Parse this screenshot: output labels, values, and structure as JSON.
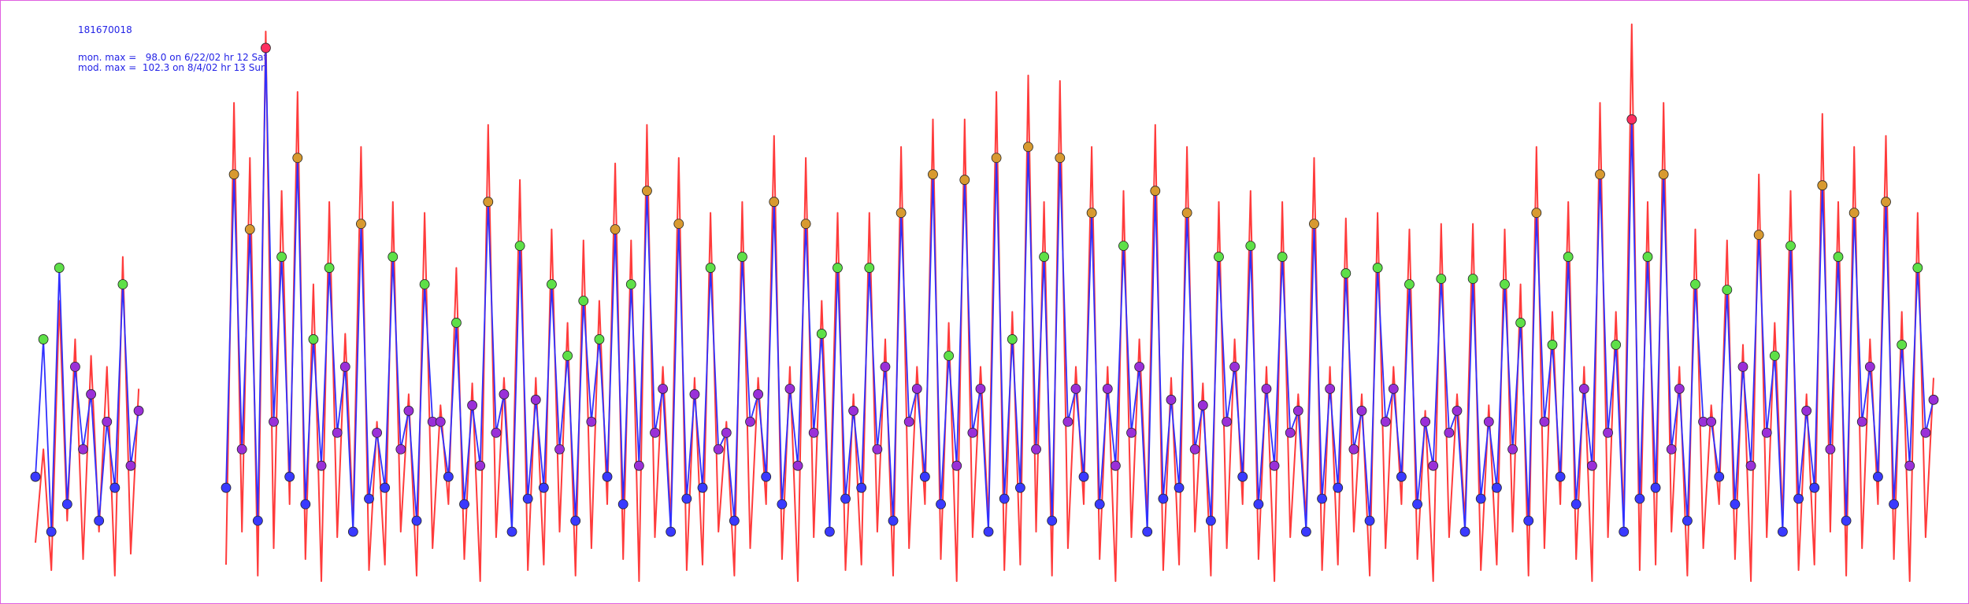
{
  "chart_data": {
    "type": "line",
    "title": "181670018",
    "annotations": [
      "mon. max =   98.0 on 6/22/02 hr 12 Sat",
      "mod. max =  102.3 on 8/4/02 hr 13 Sun"
    ],
    "ylim": [
      0,
      105
    ],
    "marker_colormap": [
      "#3a3aff",
      "#9a30d8",
      "#5ee048",
      "#d89a30",
      "#ff3060"
    ],
    "series": [
      {
        "name": "mod",
        "color": "#ff3b3b",
        "markers": false,
        "values": [
          8,
          25,
          3,
          52,
          12,
          45,
          5,
          42,
          10,
          40,
          2,
          60,
          6,
          36,
          null,
          null,
          null,
          null,
          null,
          null,
          null,
          null,
          null,
          null,
          4,
          88,
          10,
          78,
          2,
          101,
          7,
          72,
          15,
          90,
          5,
          55,
          1,
          70,
          9,
          46,
          12,
          80,
          3,
          30,
          4,
          70,
          10,
          35,
          2,
          68,
          7,
          33,
          15,
          58,
          5,
          37,
          1,
          84,
          9,
          38,
          12,
          74,
          3,
          38,
          4,
          65,
          10,
          48,
          2,
          63,
          7,
          52,
          15,
          77,
          5,
          63,
          1,
          84,
          9,
          40,
          12,
          78,
          3,
          38,
          4,
          68,
          10,
          30,
          2,
          70,
          7,
          38,
          15,
          82,
          5,
          40,
          1,
          78,
          9,
          52,
          12,
          68,
          3,
          35,
          4,
          68,
          10,
          45,
          2,
          80,
          7,
          40,
          15,
          85,
          5,
          48,
          1,
          85,
          9,
          40,
          12,
          90,
          3,
          50,
          4,
          93,
          10,
          70,
          2,
          92,
          7,
          40,
          15,
          80,
          5,
          40,
          1,
          72,
          9,
          45,
          12,
          84,
          3,
          38,
          4,
          80,
          10,
          37,
          2,
          70,
          7,
          45,
          15,
          72,
          5,
          40,
          1,
          70,
          9,
          35,
          12,
          78,
          3,
          40,
          4,
          67,
          10,
          35,
          2,
          68,
          7,
          40,
          15,
          65,
          5,
          32,
          1,
          66,
          9,
          35,
          12,
          66,
          3,
          33,
          4,
          65,
          10,
          55,
          2,
          80,
          7,
          50,
          15,
          70,
          5,
          40,
          1,
          88,
          9,
          50,
          12,
          102.3,
          3,
          70,
          4,
          88,
          10,
          40,
          2,
          65,
          7,
          33,
          15,
          63,
          5,
          44,
          1,
          75,
          9,
          48,
          12,
          72,
          3,
          35,
          4,
          86,
          10,
          70,
          2,
          80,
          7,
          45,
          15,
          82,
          5,
          50,
          1,
          68,
          9,
          38
        ]
      },
      {
        "name": "mon",
        "color": "#3030ff",
        "markers": true,
        "values": [
          20,
          45,
          10,
          58,
          15,
          40,
          25,
          35,
          12,
          30,
          18,
          55,
          22,
          32,
          null,
          null,
          null,
          null,
          null,
          null,
          null,
          null,
          null,
          null,
          18,
          75,
          25,
          65,
          12,
          98.0,
          30,
          60,
          20,
          78,
          15,
          45,
          22,
          58,
          28,
          40,
          10,
          66,
          16,
          28,
          18,
          60,
          25,
          32,
          12,
          55,
          30,
          30,
          20,
          48,
          15,
          33,
          22,
          70,
          28,
          35,
          10,
          62,
          16,
          34,
          18,
          55,
          25,
          42,
          12,
          52,
          30,
          45,
          20,
          65,
          15,
          55,
          22,
          72,
          28,
          36,
          10,
          66,
          16,
          35,
          18,
          58,
          25,
          28,
          12,
          60,
          30,
          35,
          20,
          70,
          15,
          36,
          22,
          66,
          28,
          46,
          10,
          58,
          16,
          32,
          18,
          58,
          25,
          40,
          12,
          68,
          30,
          36,
          20,
          75,
          15,
          42,
          22,
          74,
          28,
          36,
          10,
          78,
          16,
          45,
          18,
          80,
          25,
          60,
          12,
          78,
          30,
          36,
          20,
          68,
          15,
          36,
          22,
          62,
          28,
          40,
          10,
          72,
          16,
          34,
          18,
          68,
          25,
          33,
          12,
          60,
          30,
          40,
          20,
          62,
          15,
          36,
          22,
          60,
          28,
          32,
          10,
          66,
          16,
          36,
          18,
          57,
          25,
          32,
          12,
          58,
          30,
          36,
          20,
          55,
          15,
          30,
          22,
          56,
          28,
          32,
          10,
          56,
          16,
          30,
          18,
          55,
          25,
          48,
          12,
          68,
          30,
          44,
          20,
          60,
          15,
          36,
          22,
          75,
          28,
          44,
          10,
          85,
          16,
          60,
          18,
          75,
          25,
          36,
          12,
          55,
          30,
          30,
          20,
          54,
          15,
          40,
          22,
          64,
          28,
          42,
          10,
          62,
          16,
          32,
          18,
          73,
          25,
          60,
          12,
          68,
          30,
          40,
          20,
          70,
          15,
          44,
          22,
          58,
          28,
          34
        ]
      }
    ]
  }
}
